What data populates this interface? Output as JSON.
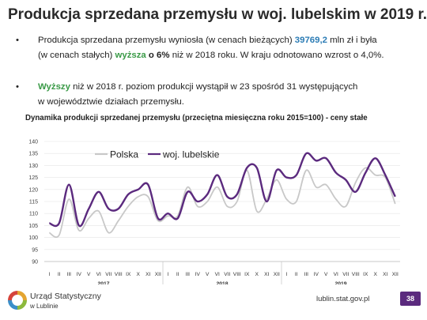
{
  "title": "Produkcja sprzedana przemysłu w woj. lubelskim w 2019 r.",
  "bullets": [
    {
      "dot": "•",
      "line1_a": "Produkcja sprzedana przemysłu wyniosła (w cenach bieżących) ",
      "line1_value": "39769,2",
      "line1_b": " mln zł i była",
      "line2_a": "(w cenach stałych) ",
      "line2_green": "wyższa",
      "line2_bold": " o 6%",
      "line2_b": " niż w 2018 roku. W kraju odnotowano wzrost o 4,0%."
    },
    {
      "dot": "•",
      "line1_green": "Wyższy",
      "line1_b": " niż w 2018 r. poziom produkcji wystąpił w 23 spośród 31 występujących",
      "line2": "w województwie działach przemysłu."
    }
  ],
  "colors": {
    "polska": "#c8c8c8",
    "lubelskie": "#5b2a7e",
    "axis": "#bbbbbb",
    "grid": "#e6e6e6"
  },
  "chart_data": {
    "type": "line",
    "title": "Dynamika produkcji sprzedanej przemysłu (przeciętna miesięczna roku 2015=100) - ceny stałe",
    "categories": [
      "I",
      "II",
      "III",
      "IV",
      "V",
      "VI",
      "VII",
      "VIII",
      "IX",
      "X",
      "XI",
      "XII",
      "I",
      "II",
      "III",
      "IV",
      "V",
      "VI",
      "VII",
      "VIII",
      "IX",
      "X",
      "XI",
      "XII",
      "I",
      "II",
      "III",
      "IV",
      "V",
      "VI",
      "VII",
      "VIII",
      "IX",
      "X",
      "XI",
      "XII"
    ],
    "years": [
      "2017",
      "2018",
      "2019"
    ],
    "ylim": [
      90,
      140
    ],
    "yticks": [
      90,
      95,
      100,
      105,
      110,
      115,
      120,
      125,
      130,
      135,
      140
    ],
    "legend_position": "top-left",
    "series": [
      {
        "name": "Polska",
        "values": [
          102,
          101,
          116,
          103,
          108,
          111,
          102,
          107,
          113,
          117,
          117,
          107,
          109,
          109,
          121,
          113,
          115,
          121,
          113,
          115,
          128,
          111,
          116,
          124,
          116,
          115,
          128,
          121,
          122,
          116,
          113,
          123,
          129,
          126,
          125,
          114
        ]
      },
      {
        "name": "woj. lubelskie",
        "values": [
          106,
          106,
          122,
          105,
          112,
          119,
          112,
          112,
          118,
          120,
          122,
          108,
          110,
          108,
          119,
          115,
          118,
          126,
          117,
          118,
          129,
          129,
          115,
          128,
          125,
          126,
          135,
          132,
          133,
          127,
          124,
          119,
          127,
          133,
          126,
          117
        ]
      }
    ]
  },
  "footer": {
    "org_line1": "Urząd Statystyczny",
    "org_line2": "w Lublinie",
    "url": "lublin.stat.gov.pl",
    "page": "38"
  }
}
